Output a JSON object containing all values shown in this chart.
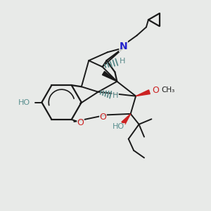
{
  "background_color": "#e8eae8",
  "bond_color": "#1a1a1a",
  "N_color": "#2222cc",
  "O_color": "#cc2222",
  "HO_color": "#5a9090",
  "stereo_color": "#5a8a8a",
  "figsize": [
    3.0,
    3.0
  ],
  "dpi": 100,
  "xlim": [
    0,
    10
  ],
  "ylim": [
    0,
    10
  ]
}
